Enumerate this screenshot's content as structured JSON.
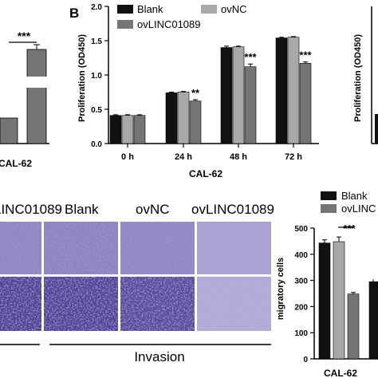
{
  "colors": {
    "blank": "#111111",
    "ovNC": "#a8a8a8",
    "ovLINC01089": "#757575",
    "stain_dark": "#4b3f93",
    "stain_light": "#9a93c8"
  },
  "panel_a": {
    "significance": "***",
    "x_tick": "CAL-62"
  },
  "panel_b": {
    "letter": "B",
    "significance": [
      "**",
      "***",
      "***"
    ]
  },
  "panel_right_top": {
    "ylabel": "Proliferation (OD450)"
  },
  "panel_c": {
    "column_labels": [
      "LINC01089",
      "Blank",
      "ovNC",
      "ovLINC01089"
    ],
    "row_label": "Invasion"
  },
  "panel_d": {
    "legend": [
      "Blank",
      "ovLINC"
    ],
    "significance": "***",
    "x_tick": "CAL-62"
  },
  "chart_data": [
    {
      "type": "bar",
      "title": "",
      "categories": [
        "0 h",
        "24 h",
        "48 h",
        "72 h"
      ],
      "series": [
        {
          "name": "Blank",
          "values": [
            0.41,
            0.74,
            1.4,
            1.54
          ]
        },
        {
          "name": "ovNC",
          "values": [
            0.41,
            0.75,
            1.41,
            1.55
          ]
        },
        {
          "name": "ovLINC01089",
          "values": [
            0.41,
            0.62,
            1.12,
            1.17
          ]
        }
      ],
      "errors": [
        [
          0.01,
          0.01,
          0.02,
          0.01
        ],
        [
          0.01,
          0.01,
          0.01,
          0.01
        ],
        [
          0.01,
          0.02,
          0.04,
          0.02
        ]
      ],
      "xlabel": "CAL-62",
      "ylabel": "Proliferation (OD450)",
      "ylim": [
        0,
        2.0
      ],
      "yticks": [
        0.0,
        0.5,
        1.0,
        1.5,
        2.0
      ],
      "ytick_labels": [
        "0.0",
        "0.5",
        "1.0",
        "1.5",
        "2.0"
      ],
      "legend_position": "top"
    },
    {
      "type": "bar",
      "title": "",
      "categories": [
        "CAL-62"
      ],
      "series": [
        {
          "name": "Blank",
          "values": [
            443
          ]
        },
        {
          "name": "ovNC",
          "values": [
            448
          ]
        },
        {
          "name": "ovLINC01089",
          "values": [
            248
          ]
        }
      ],
      "errors": [
        [
          12
        ],
        [
          18
        ],
        [
          6
        ]
      ],
      "xlabel": "",
      "ylabel": "migratory cells",
      "ylim": [
        0,
        500
      ],
      "yticks": [
        0,
        100,
        200,
        300,
        400,
        500
      ],
      "ytick_labels": [
        "0",
        "100",
        "200",
        "300",
        "400",
        "500"
      ],
      "legend_position": "top"
    }
  ]
}
